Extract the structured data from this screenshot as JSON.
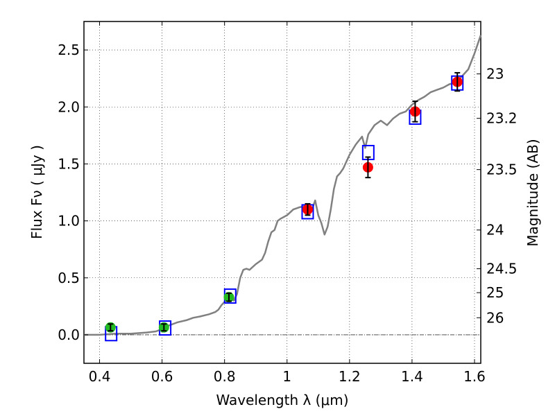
{
  "chart_data": {
    "type": "scatter",
    "xlabel": "Wavelength  λ (μm)",
    "ylabel": "Flux  Fν  ( μJy )",
    "ylabel_right": "Magnitude (AB)",
    "xlim": [
      0.35,
      1.62
    ],
    "ylim": [
      -0.25,
      2.75
    ],
    "grid": true,
    "x_ticks": [
      0.4,
      0.6,
      0.8,
      1.0,
      1.2,
      1.4,
      1.6
    ],
    "x_tick_labels": [
      "0.4",
      "0.6",
      "0.8",
      "1",
      "1.2",
      "1.4",
      "1.6"
    ],
    "y_ticks": [
      0.0,
      0.5,
      1.0,
      1.5,
      2.0,
      2.5
    ],
    "y_tick_labels": [
      "0.0",
      "0.5",
      "1.0",
      "1.5",
      "2.0",
      "2.5"
    ],
    "right_ticks": [
      {
        "label": "23",
        "flux": 2.29
      },
      {
        "label": "23.2",
        "flux": 1.9
      },
      {
        "label": "23.5",
        "flux": 1.45
      },
      {
        "label": "24",
        "flux": 0.92
      },
      {
        "label": "24.5",
        "flux": 0.58
      },
      {
        "label": "25",
        "flux": 0.37
      },
      {
        "label": "26",
        "flux": 0.15
      }
    ],
    "series": [
      {
        "name": "model spectrum",
        "kind": "line",
        "color": "#808080",
        "x": [
          0.35,
          0.4,
          0.45,
          0.5,
          0.55,
          0.58,
          0.6,
          0.62,
          0.65,
          0.68,
          0.7,
          0.72,
          0.75,
          0.77,
          0.78,
          0.79,
          0.8,
          0.81,
          0.82,
          0.83,
          0.84,
          0.85,
          0.86,
          0.87,
          0.88,
          0.9,
          0.92,
          0.93,
          0.94,
          0.95,
          0.96,
          0.97,
          0.98,
          1.0,
          1.02,
          1.04,
          1.06,
          1.08,
          1.09,
          1.1,
          1.11,
          1.12,
          1.13,
          1.14,
          1.15,
          1.16,
          1.17,
          1.18,
          1.2,
          1.22,
          1.24,
          1.25,
          1.26,
          1.28,
          1.3,
          1.32,
          1.34,
          1.36,
          1.38,
          1.4,
          1.42,
          1.44,
          1.46,
          1.48,
          1.5,
          1.52,
          1.54,
          1.56,
          1.58,
          1.6,
          1.62
        ],
        "y": [
          0.0,
          0.0,
          0.01,
          0.01,
          0.02,
          0.03,
          0.05,
          0.08,
          0.11,
          0.13,
          0.15,
          0.16,
          0.18,
          0.2,
          0.22,
          0.26,
          0.29,
          0.31,
          0.33,
          0.3,
          0.36,
          0.5,
          0.57,
          0.58,
          0.57,
          0.62,
          0.66,
          0.72,
          0.82,
          0.9,
          0.92,
          1.0,
          1.02,
          1.05,
          1.1,
          1.12,
          1.13,
          1.1,
          1.18,
          1.05,
          0.98,
          0.88,
          0.95,
          1.1,
          1.28,
          1.39,
          1.42,
          1.46,
          1.58,
          1.67,
          1.74,
          1.64,
          1.76,
          1.84,
          1.88,
          1.84,
          1.9,
          1.94,
          1.96,
          2.02,
          2.06,
          2.09,
          2.13,
          2.15,
          2.17,
          2.2,
          2.21,
          2.27,
          2.33,
          2.47,
          2.63
        ]
      },
      {
        "name": "green points",
        "kind": "points",
        "color": "#22bb22",
        "x": [
          0.435,
          0.606,
          0.814
        ],
        "y": [
          0.065,
          0.065,
          0.33
        ],
        "err": [
          0.03,
          0.03,
          0.035
        ]
      },
      {
        "name": "red points",
        "kind": "points",
        "color": "#ff0000",
        "x": [
          1.066,
          1.259,
          1.41,
          1.545
        ],
        "y": [
          1.1,
          1.47,
          1.96,
          2.22
        ],
        "err": [
          0.05,
          0.09,
          0.09,
          0.08
        ]
      },
      {
        "name": "model photometry",
        "kind": "squares",
        "color": "#0000ff",
        "x": [
          0.437,
          0.61,
          0.818,
          1.066,
          1.26,
          1.41,
          1.545
        ],
        "y": [
          0.01,
          0.06,
          0.34,
          1.08,
          1.6,
          1.91,
          2.21
        ]
      }
    ]
  }
}
